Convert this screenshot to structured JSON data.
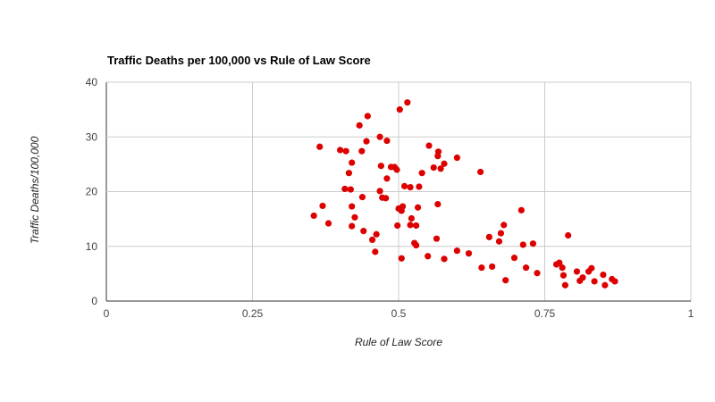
{
  "chart_data": {
    "type": "scatter",
    "title": "Traffic Deaths per 100,000 vs Rule of Law Score",
    "xlabel": "Rule of Law Score",
    "ylabel": "Traffic Deaths/100,000",
    "xlim": [
      0,
      1
    ],
    "ylim": [
      0,
      40
    ],
    "xticks": [
      "0",
      "0.25",
      "0.5",
      "0.75",
      "1"
    ],
    "yticks": [
      "0",
      "10",
      "20",
      "30",
      "40"
    ],
    "grid": true,
    "legend": "none",
    "point_color": "#dd0000",
    "points": [
      [
        0.355,
        15.6
      ],
      [
        0.365,
        28.2
      ],
      [
        0.37,
        17.4
      ],
      [
        0.38,
        14.2
      ],
      [
        0.4,
        27.6
      ],
      [
        0.408,
        20.5
      ],
      [
        0.41,
        27.4
      ],
      [
        0.415,
        23.4
      ],
      [
        0.418,
        20.4
      ],
      [
        0.42,
        13.7
      ],
      [
        0.42,
        25.3
      ],
      [
        0.42,
        17.3
      ],
      [
        0.425,
        15.3
      ],
      [
        0.433,
        32.1
      ],
      [
        0.437,
        27.4
      ],
      [
        0.438,
        19.0
      ],
      [
        0.44,
        12.8
      ],
      [
        0.445,
        29.2
      ],
      [
        0.447,
        33.8
      ],
      [
        0.455,
        11.2
      ],
      [
        0.46,
        9.0
      ],
      [
        0.462,
        12.2
      ],
      [
        0.468,
        30.0
      ],
      [
        0.468,
        20.1
      ],
      [
        0.47,
        24.7
      ],
      [
        0.472,
        18.9
      ],
      [
        0.478,
        18.8
      ],
      [
        0.48,
        29.3
      ],
      [
        0.48,
        22.4
      ],
      [
        0.487,
        24.5
      ],
      [
        0.493,
        24.5
      ],
      [
        0.497,
        24.0
      ],
      [
        0.498,
        13.8
      ],
      [
        0.5,
        16.9
      ],
      [
        0.502,
        35.0
      ],
      [
        0.505,
        16.5
      ],
      [
        0.505,
        7.8
      ],
      [
        0.507,
        17.3
      ],
      [
        0.51,
        21.0
      ],
      [
        0.515,
        36.3
      ],
      [
        0.52,
        20.8
      ],
      [
        0.522,
        15.1
      ],
      [
        0.52,
        13.9
      ],
      [
        0.527,
        10.6
      ],
      [
        0.53,
        10.2
      ],
      [
        0.53,
        13.8
      ],
      [
        0.533,
        17.1
      ],
      [
        0.535,
        20.9
      ],
      [
        0.54,
        23.4
      ],
      [
        0.55,
        8.2
      ],
      [
        0.552,
        28.4
      ],
      [
        0.56,
        24.4
      ],
      [
        0.565,
        11.4
      ],
      [
        0.567,
        17.7
      ],
      [
        0.567,
        26.5
      ],
      [
        0.568,
        27.3
      ],
      [
        0.572,
        24.2
      ],
      [
        0.578,
        25.1
      ],
      [
        0.578,
        7.7
      ],
      [
        0.6,
        9.2
      ],
      [
        0.6,
        26.2
      ],
      [
        0.62,
        8.7
      ],
      [
        0.64,
        23.6
      ],
      [
        0.642,
        6.1
      ],
      [
        0.655,
        11.7
      ],
      [
        0.66,
        6.3
      ],
      [
        0.672,
        10.9
      ],
      [
        0.675,
        12.4
      ],
      [
        0.68,
        13.9
      ],
      [
        0.683,
        3.8
      ],
      [
        0.698,
        7.9
      ],
      [
        0.71,
        16.6
      ],
      [
        0.713,
        10.3
      ],
      [
        0.718,
        6.1
      ],
      [
        0.73,
        10.5
      ],
      [
        0.737,
        5.1
      ],
      [
        0.77,
        6.7
      ],
      [
        0.775,
        7.0
      ],
      [
        0.78,
        6.1
      ],
      [
        0.782,
        4.7
      ],
      [
        0.785,
        2.9
      ],
      [
        0.79,
        12.0
      ],
      [
        0.805,
        5.4
      ],
      [
        0.81,
        3.7
      ],
      [
        0.815,
        4.3
      ],
      [
        0.825,
        5.4
      ],
      [
        0.83,
        6.0
      ],
      [
        0.835,
        3.6
      ],
      [
        0.85,
        4.8
      ],
      [
        0.853,
        2.9
      ],
      [
        0.865,
        4.0
      ],
      [
        0.87,
        3.6
      ]
    ]
  }
}
